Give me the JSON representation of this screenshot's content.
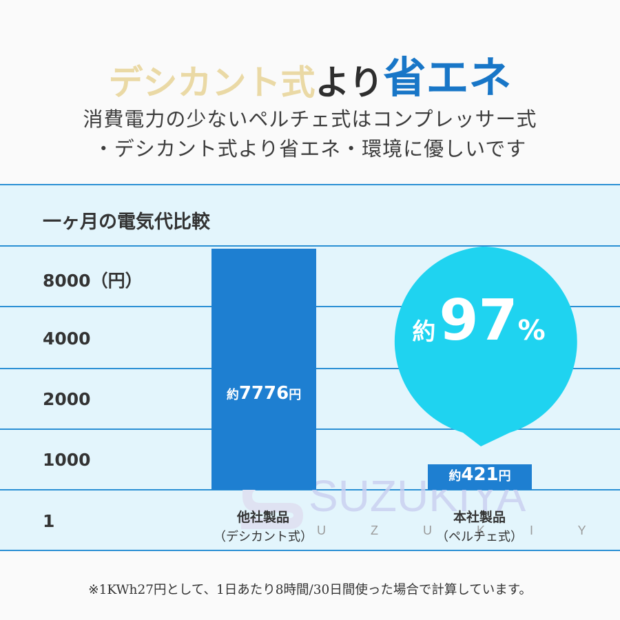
{
  "headline": {
    "part1": "デシカント式",
    "part2": "より",
    "part3": "省エネ"
  },
  "subtitle": {
    "line1": "消費電力の少ないペルチェ式はコンプレッサー式",
    "line2": "・デシカント式より省エネ・環境に優しいです"
  },
  "chart_data": {
    "type": "bar",
    "title": "一ヶ月の電気代比較",
    "unit_label": "（円）",
    "y_ticks": [
      "8000",
      "4000",
      "2000",
      "1000",
      "1"
    ],
    "categories": [
      "他社製品",
      "本社製品"
    ],
    "category_subtitles": [
      "（デシカント式）",
      "（ペルチェ式）"
    ],
    "values": [
      7776,
      421
    ],
    "value_labels": [
      {
        "prefix": "約",
        "number": "7776",
        "suffix": "円"
      },
      {
        "prefix": "約",
        "number": "421",
        "suffix": "円"
      }
    ],
    "colors": {
      "bar": "#1e7fd1",
      "grid": "#2a8fd4",
      "panel": "#e3f5fc"
    },
    "callout": {
      "prefix": "約",
      "value": "97",
      "suffix": "%",
      "color": "#1fd3f0"
    }
  },
  "watermark": {
    "text": "SUZUKIYA",
    "subtext": "U Z U K I Y A"
  },
  "footnote": "※1KWh27円として、1日あたり8時間/30日間使った場合で計算しています。"
}
